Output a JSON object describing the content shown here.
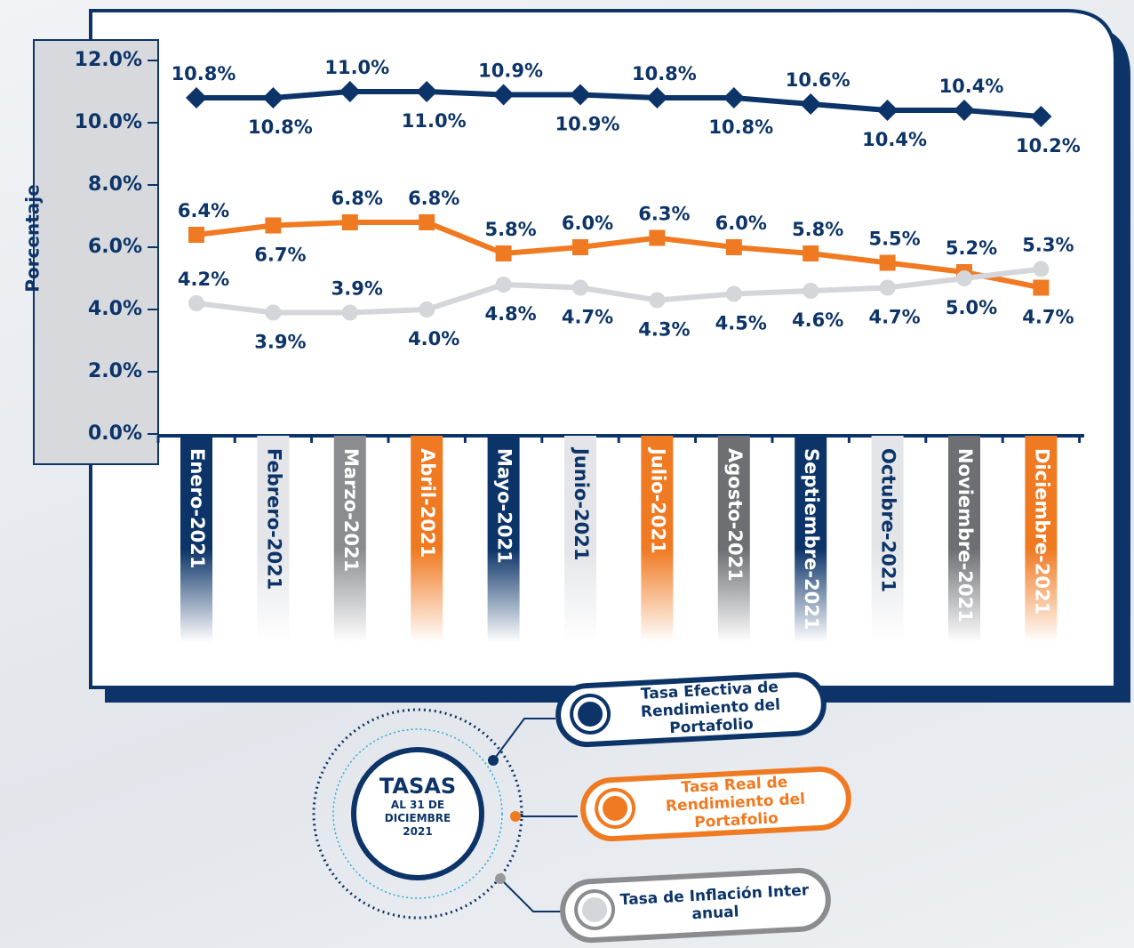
{
  "chart_data": {
    "type": "line",
    "y_label": "Porcentaje",
    "categories": [
      "Enero-2021",
      "Febrero-2021",
      "Marzo-2021",
      "Abril-2021",
      "Mayo-2021",
      "Junio-2021",
      "Julio-2021",
      "Agosto-2021",
      "Septiembre-2021",
      "Octubre-2021",
      "Noviembre-2021",
      "Diciembre-2021"
    ],
    "series": [
      {
        "name": "Tasa Efectiva de Rendimiento del Portafolio",
        "color": "#0c3468",
        "values": [
          10.8,
          10.8,
          11.0,
          11.0,
          10.9,
          10.9,
          10.8,
          10.8,
          10.6,
          10.4,
          10.4,
          10.2
        ],
        "value_labels": [
          "10.8%",
          "10.8%",
          "11.0%",
          "11.0%",
          "10.9%",
          "10.9%",
          "10.8%",
          "10.8%",
          "10.6%",
          "10.4%",
          "10.4%",
          "10.2%"
        ]
      },
      {
        "name": "Tasa Real de Rendimiento del Portafolio",
        "color": "#f07a22",
        "values": [
          6.4,
          6.7,
          6.8,
          6.8,
          5.8,
          6.0,
          6.3,
          6.0,
          5.8,
          5.5,
          5.2,
          4.7
        ],
        "value_labels": [
          "6.4%",
          "6.7%",
          "6.8%",
          "6.8%",
          "5.8%",
          "6.0%",
          "6.3%",
          "6.0%",
          "5.8%",
          "5.5%",
          "5.2%",
          "4.7%"
        ]
      },
      {
        "name": "Tasa de Inflación Inter anual",
        "color": "#d4d6da",
        "values": [
          4.2,
          3.9,
          3.9,
          4.0,
          4.8,
          4.7,
          4.3,
          4.5,
          4.6,
          4.7,
          5.0,
          5.3
        ],
        "value_labels": [
          "4.2%",
          "3.9%",
          "3.9%",
          "4.0%",
          "4.8%",
          "4.7%",
          "4.3%",
          "4.5%",
          "4.6%",
          "4.7%",
          "5.0%",
          "5.3%"
        ]
      }
    ],
    "ylim": [
      0,
      12
    ],
    "yticks": [
      {
        "value": 0,
        "label": "0.0%"
      },
      {
        "value": 2,
        "label": "2.0%"
      },
      {
        "value": 4,
        "label": "4.0%"
      },
      {
        "value": 6,
        "label": "6.0%"
      },
      {
        "value": 8,
        "label": "8.0%"
      },
      {
        "value": 10,
        "label": "10.0%"
      },
      {
        "value": 12,
        "label": "12.0%"
      }
    ],
    "legend_title": "TASAS",
    "legend_subtitle": "AL 31 DE DICIEMBRE 2021"
  }
}
